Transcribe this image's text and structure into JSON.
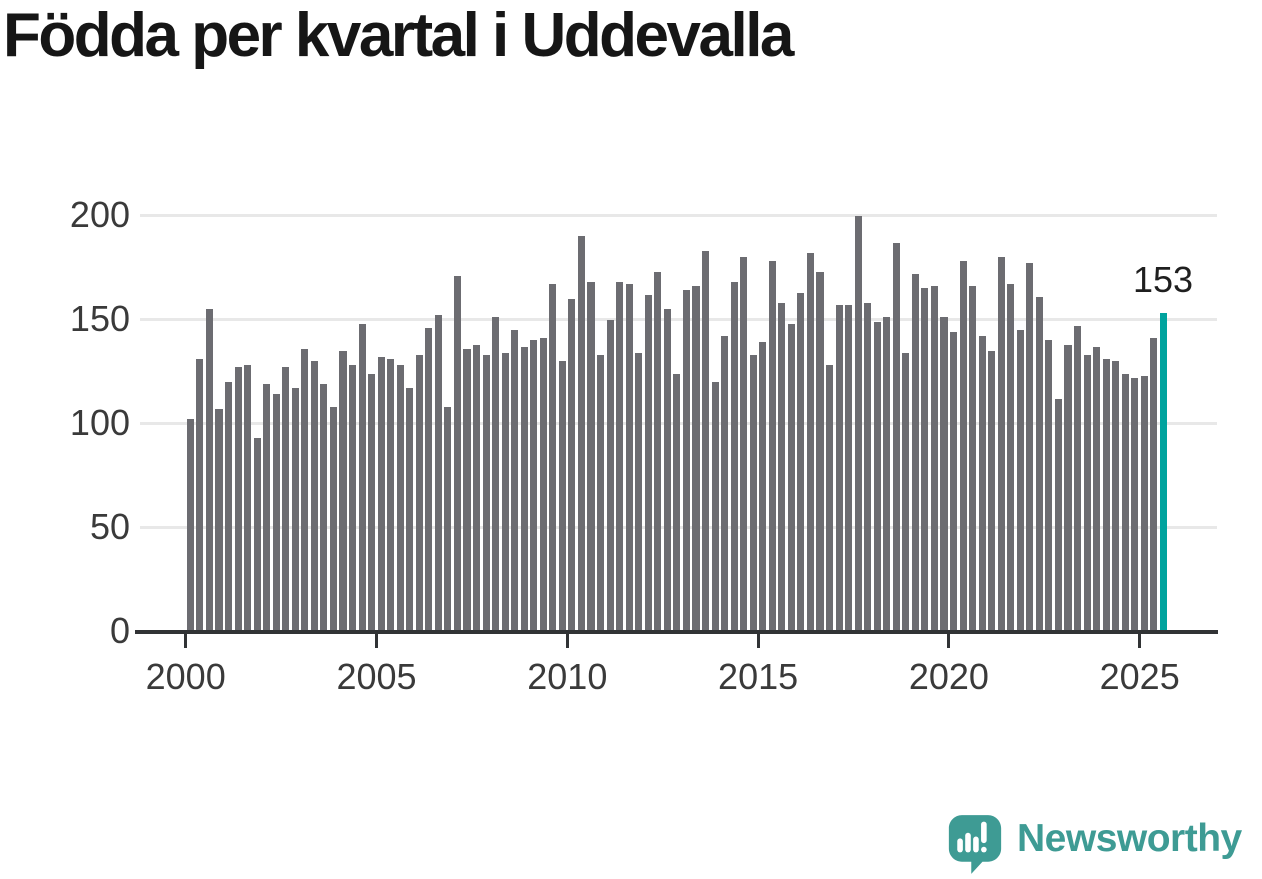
{
  "page": {
    "background": "#ffffff"
  },
  "chart_data": {
    "type": "bar",
    "title": "Födda per kvartal i Uddevalla",
    "xlabel": "",
    "ylabel": "",
    "x_start": "2000 Q1",
    "x_end": "2025 Q3",
    "periods_per_year": 4,
    "x_tick_labels": [
      "2000",
      "2005",
      "2010",
      "2015",
      "2020",
      "2025"
    ],
    "y_ticks": [
      0,
      50,
      100,
      150,
      200
    ],
    "y_tick_labels": [
      "0",
      "50",
      "100",
      "150",
      "200"
    ],
    "ylim": [
      0,
      215
    ],
    "grid": "horizontal",
    "legend": "none",
    "bar_color": "#6c6c71",
    "highlight_color": "#00a39e",
    "highlight_index": 102,
    "annotation": {
      "label": "153",
      "value": 153
    },
    "values": [
      102,
      131,
      155,
      107,
      120,
      127,
      128,
      93,
      119,
      114,
      127,
      117,
      136,
      130,
      119,
      108,
      135,
      128,
      148,
      124,
      132,
      131,
      128,
      117,
      133,
      146,
      152,
      108,
      171,
      136,
      138,
      133,
      151,
      134,
      145,
      137,
      140,
      141,
      167,
      130,
      160,
      190,
      168,
      133,
      150,
      168,
      167,
      134,
      162,
      173,
      155,
      124,
      164,
      166,
      183,
      120,
      142,
      168,
      180,
      133,
      139,
      178,
      158,
      148,
      163,
      182,
      173,
      128,
      157,
      157,
      200,
      158,
      149,
      151,
      187,
      134,
      172,
      165,
      166,
      151,
      144,
      178,
      166,
      142,
      135,
      180,
      167,
      145,
      177,
      161,
      140,
      112,
      138,
      147,
      133,
      137,
      131,
      130,
      124,
      122,
      123,
      141,
      153
    ]
  },
  "branding": {
    "name": "Newsworthy",
    "color": "#3e9b94",
    "icon": "newsworthy-speech-bubble-bar-chart-icon"
  }
}
